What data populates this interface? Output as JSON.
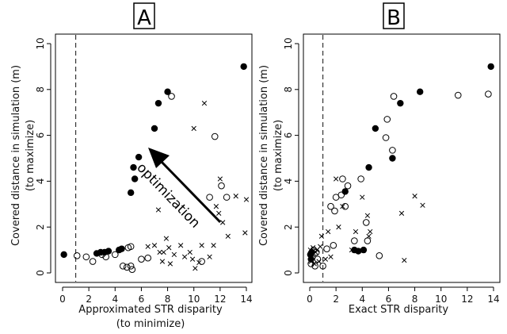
{
  "chart_data": [
    {
      "panel": "A",
      "type": "scatter",
      "xlabel": "Approximated STR disparity",
      "xlabel_sub": "(to minimize)",
      "ylabel": "Covered distance in simulation (m)",
      "ylabel_sub": "(to maximize)",
      "xlim": [
        0,
        14
      ],
      "ylim": [
        0,
        10
      ],
      "xticks": [
        0,
        2,
        4,
        6,
        8,
        10,
        12,
        14
      ],
      "yticks": [
        0,
        2,
        4,
        6,
        8,
        10
      ],
      "vline_x": 1,
      "annotation": "optimization",
      "series": [
        {
          "marker": "filled-circle",
          "points": [
            [
              0.1,
              0.8
            ],
            [
              2.6,
              0.85
            ],
            [
              2.9,
              0.9
            ],
            [
              3.2,
              0.9
            ],
            [
              3.5,
              0.95
            ],
            [
              4.3,
              1.0
            ],
            [
              4.5,
              1.05
            ],
            [
              5.2,
              3.5
            ],
            [
              5.4,
              4.6
            ],
            [
              5.8,
              5.05
            ],
            [
              5.5,
              4.1
            ],
            [
              7.0,
              6.3
            ],
            [
              7.3,
              7.4
            ],
            [
              8.0,
              7.9
            ],
            [
              13.8,
              9.0
            ]
          ]
        },
        {
          "marker": "open-circle",
          "points": [
            [
              1.1,
              0.75
            ],
            [
              1.8,
              0.7
            ],
            [
              2.3,
              0.5
            ],
            [
              3.0,
              0.8
            ],
            [
              3.3,
              0.7
            ],
            [
              4.0,
              0.8
            ],
            [
              4.6,
              0.3
            ],
            [
              4.9,
              0.25
            ],
            [
              5.2,
              0.3
            ],
            [
              5.0,
              1.1
            ],
            [
              5.3,
              0.15
            ],
            [
              6.0,
              0.6
            ],
            [
              6.5,
              0.65
            ],
            [
              5.2,
              1.15
            ],
            [
              8.3,
              7.7
            ],
            [
              10.6,
              0.5
            ],
            [
              11.2,
              3.3
            ],
            [
              11.6,
              5.95
            ],
            [
              12.1,
              3.8
            ],
            [
              12.5,
              3.3
            ]
          ]
        },
        {
          "marker": "cross",
          "points": [
            [
              6.5,
              1.15
            ],
            [
              7.0,
              1.2
            ],
            [
              7.3,
              2.75
            ],
            [
              7.4,
              0.9
            ],
            [
              7.6,
              0.5
            ],
            [
              7.7,
              0.9
            ],
            [
              7.9,
              1.5
            ],
            [
              8.1,
              1.1
            ],
            [
              8.2,
              0.4
            ],
            [
              8.5,
              0.8
            ],
            [
              9.0,
              1.2
            ],
            [
              9.3,
              0.7
            ],
            [
              9.7,
              0.9
            ],
            [
              9.9,
              0.6
            ],
            [
              10.0,
              6.3
            ],
            [
              10.1,
              0.2
            ],
            [
              10.4,
              0.45
            ],
            [
              10.6,
              1.2
            ],
            [
              10.8,
              7.4
            ],
            [
              11.2,
              0.7
            ],
            [
              11.5,
              1.2
            ],
            [
              11.7,
              2.9
            ],
            [
              11.9,
              2.6
            ],
            [
              12.0,
              4.1
            ],
            [
              12.2,
              2.2
            ],
            [
              12.6,
              1.6
            ],
            [
              13.2,
              3.35
            ],
            [
              13.9,
              1.75
            ],
            [
              14.0,
              3.2
            ]
          ]
        }
      ]
    },
    {
      "panel": "B",
      "type": "scatter",
      "xlabel": "Exact STR disparity",
      "ylabel": "Covered distance in simulation (m)",
      "ylabel_sub": "(to maximize)",
      "xlim": [
        0,
        14
      ],
      "ylim": [
        0,
        10
      ],
      "xticks": [
        0,
        2,
        4,
        6,
        8,
        10,
        12,
        14
      ],
      "yticks": [
        0,
        2,
        4,
        6,
        8,
        10
      ],
      "vline_x": 1,
      "series": [
        {
          "marker": "filled-circle",
          "points": [
            [
              0.05,
              0.8
            ],
            [
              0.1,
              0.6
            ],
            [
              0.15,
              0.9
            ],
            [
              2.7,
              3.55
            ],
            [
              3.4,
              1.0
            ],
            [
              3.7,
              0.95
            ],
            [
              4.1,
              1.0
            ],
            [
              4.5,
              4.6
            ],
            [
              5.0,
              6.3
            ],
            [
              6.3,
              5.0
            ],
            [
              6.9,
              7.4
            ],
            [
              8.4,
              7.9
            ],
            [
              13.8,
              9.0
            ]
          ]
        },
        {
          "marker": "open-circle",
          "points": [
            [
              0.1,
              0.4
            ],
            [
              0.2,
              0.7
            ],
            [
              0.3,
              1.0
            ],
            [
              0.4,
              0.3
            ],
            [
              0.5,
              0.9
            ],
            [
              0.6,
              0.6
            ],
            [
              1.0,
              0.3
            ],
            [
              1.3,
              1.05
            ],
            [
              1.6,
              2.9
            ],
            [
              1.8,
              1.2
            ],
            [
              1.9,
              2.7
            ],
            [
              2.0,
              3.3
            ],
            [
              2.4,
              3.4
            ],
            [
              2.5,
              4.1
            ],
            [
              2.7,
              2.9
            ],
            [
              2.9,
              3.8
            ],
            [
              3.4,
              1.4
            ],
            [
              3.9,
              4.1
            ],
            [
              4.3,
              2.2
            ],
            [
              4.4,
              1.4
            ],
            [
              5.3,
              0.75
            ],
            [
              5.8,
              5.9
            ],
            [
              5.9,
              6.7
            ],
            [
              6.3,
              5.35
            ],
            [
              6.4,
              7.7
            ],
            [
              11.3,
              7.75
            ],
            [
              13.6,
              7.8
            ]
          ]
        },
        {
          "marker": "cross",
          "points": [
            [
              0.05,
              1.0
            ],
            [
              0.1,
              0.5
            ],
            [
              0.2,
              0.8
            ],
            [
              0.25,
              1.1
            ],
            [
              0.35,
              0.4
            ],
            [
              0.45,
              0.9
            ],
            [
              0.55,
              1.0
            ],
            [
              0.7,
              0.5
            ],
            [
              0.8,
              1.15
            ],
            [
              0.9,
              1.6
            ],
            [
              1.2,
              0.6
            ],
            [
              1.4,
              1.8
            ],
            [
              1.6,
              0.7
            ],
            [
              2.0,
              4.1
            ],
            [
              2.2,
              2.0
            ],
            [
              2.5,
              2.9
            ],
            [
              3.2,
              1.0
            ],
            [
              3.5,
              1.8
            ],
            [
              4.0,
              3.3
            ],
            [
              4.4,
              2.5
            ],
            [
              4.5,
              1.6
            ],
            [
              4.6,
              1.8
            ],
            [
              7.0,
              2.6
            ],
            [
              7.2,
              0.55
            ],
            [
              8.0,
              3.35
            ],
            [
              8.6,
              2.95
            ]
          ]
        }
      ]
    }
  ]
}
